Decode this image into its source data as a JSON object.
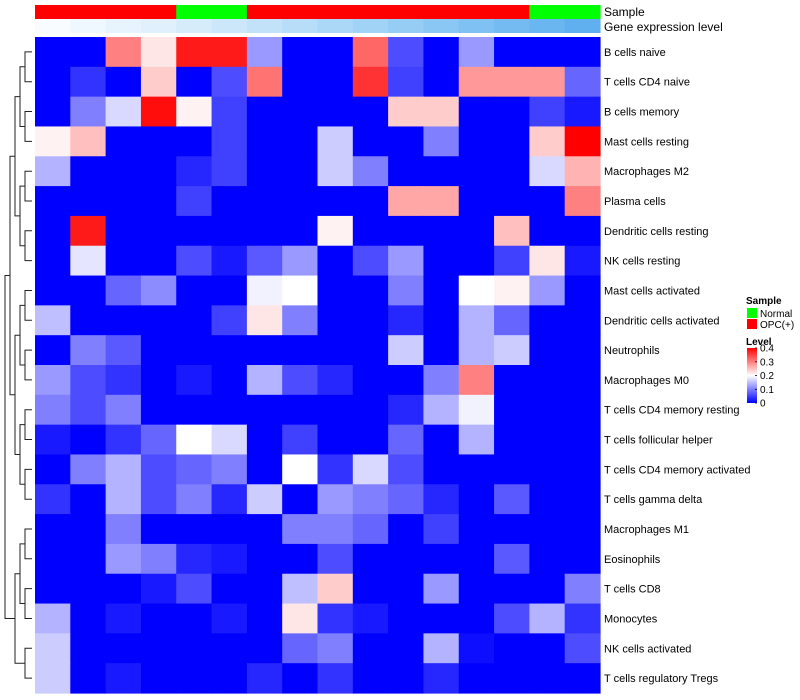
{
  "chart_data": {
    "type": "heatmap",
    "title": "",
    "annotation_tracks": [
      "Sample",
      "Gene expression level"
    ],
    "sample_groups": [
      "OPC(+)",
      "OPC(+)",
      "OPC(+)",
      "OPC(+)",
      "Normal",
      "Normal",
      "OPC(+)",
      "OPC(+)",
      "OPC(+)",
      "OPC(+)",
      "OPC(+)",
      "OPC(+)",
      "OPC(+)",
      "OPC(+)",
      "Normal",
      "Normal"
    ],
    "expression_level_gradient": [
      "#f8fcff",
      "#f0f8ff",
      "#e8f4fd",
      "#e0f0fc",
      "#d6ecfb",
      "#cce7fa",
      "#c2e2f9",
      "#b7ddf8",
      "#acd8f7",
      "#a1d3f6",
      "#96cdf5",
      "#8ac7f4",
      "#7fc1f3",
      "#74bbf2",
      "#6ab6f1",
      "#60b0f0"
    ],
    "rows": [
      "B cells naive",
      "T cells CD4 naive",
      "B cells memory",
      "Mast cells resting",
      "Macrophages M2",
      "Plasma cells",
      "Dendritic cells resting",
      "NK cells resting",
      "Mast cells activated",
      "Dendritic cells activated",
      "Neutrophils",
      "Macrophages M0",
      "T cells CD4 memory resting",
      "T cells follicular helper",
      "T cells CD4 memory activated",
      "T cells gamma delta",
      "Macrophages M1",
      "Eosinophils",
      "T cells CD8",
      "Monocytes",
      "NK cells activated",
      "T cells regulatory  Tregs"
    ],
    "values": [
      [
        0.0,
        0.0,
        0.3,
        0.22,
        0.38,
        0.38,
        0.12,
        0.0,
        0.0,
        0.32,
        0.06,
        0.0,
        0.12,
        0.0,
        0.0,
        0.0
      ],
      [
        0.0,
        0.04,
        0.0,
        0.24,
        0.0,
        0.06,
        0.31,
        0.0,
        0.0,
        0.36,
        0.05,
        0.0,
        0.28,
        0.28,
        0.28,
        0.08
      ],
      [
        0.0,
        0.1,
        0.17,
        0.39,
        0.21,
        0.05,
        0.0,
        0.0,
        0.0,
        0.0,
        0.24,
        0.24,
        0.0,
        0.0,
        0.05,
        0.02
      ],
      [
        0.21,
        0.25,
        0.0,
        0.0,
        0.0,
        0.05,
        0.0,
        0.0,
        0.16,
        0.0,
        0.0,
        0.1,
        0.0,
        0.0,
        0.24,
        0.4
      ],
      [
        0.14,
        0.0,
        0.0,
        0.0,
        0.03,
        0.05,
        0.0,
        0.0,
        0.16,
        0.1,
        0.0,
        0.0,
        0.0,
        0.0,
        0.17,
        0.26
      ],
      [
        0.0,
        0.0,
        0.0,
        0.0,
        0.05,
        0.0,
        0.0,
        0.0,
        0.0,
        0.0,
        0.27,
        0.27,
        0.0,
        0.0,
        0.0,
        0.3
      ],
      [
        0.0,
        0.38,
        0.0,
        0.0,
        0.0,
        0.0,
        0.0,
        0.0,
        0.21,
        0.0,
        0.0,
        0.0,
        0.0,
        0.25,
        0.0,
        0.0
      ],
      [
        0.0,
        0.18,
        0.0,
        0.0,
        0.06,
        0.02,
        0.07,
        0.12,
        0.0,
        0.06,
        0.12,
        0.0,
        0.0,
        0.05,
        0.22,
        0.02
      ],
      [
        0.0,
        0.0,
        0.08,
        0.11,
        0.0,
        0.0,
        0.19,
        0.2,
        0.0,
        0.0,
        0.1,
        0.0,
        0.2,
        0.21,
        0.12,
        0.0
      ],
      [
        0.15,
        0.0,
        0.0,
        0.0,
        0.0,
        0.05,
        0.22,
        0.1,
        0.0,
        0.0,
        0.03,
        0.0,
        0.14,
        0.08,
        0.0,
        0.0
      ],
      [
        0.0,
        0.1,
        0.07,
        0.0,
        0.0,
        0.0,
        0.0,
        0.0,
        0.0,
        0.0,
        0.16,
        0.0,
        0.14,
        0.16,
        0.0,
        0.0
      ],
      [
        0.12,
        0.06,
        0.04,
        0.0,
        0.02,
        0.0,
        0.14,
        0.06,
        0.03,
        0.0,
        0.0,
        0.1,
        0.3,
        0.0,
        0.0,
        0.0
      ],
      [
        0.1,
        0.06,
        0.1,
        0.0,
        0.0,
        0.0,
        0.0,
        0.0,
        0.0,
        0.0,
        0.03,
        0.14,
        0.19,
        0.0,
        0.0,
        0.0
      ],
      [
        0.02,
        0.0,
        0.04,
        0.08,
        0.2,
        0.17,
        0.0,
        0.05,
        0.0,
        0.0,
        0.08,
        0.0,
        0.14,
        0.0,
        0.0,
        0.0
      ],
      [
        0.0,
        0.1,
        0.14,
        0.06,
        0.08,
        0.1,
        0.0,
        0.2,
        0.04,
        0.17,
        0.06,
        0.0,
        0.0,
        0.0,
        0.0,
        0.0
      ],
      [
        0.04,
        0.0,
        0.14,
        0.06,
        0.1,
        0.03,
        0.16,
        0.0,
        0.12,
        0.1,
        0.08,
        0.03,
        0.0,
        0.07,
        0.0,
        0.0
      ],
      [
        0.0,
        0.0,
        0.1,
        0.0,
        0.0,
        0.0,
        0.0,
        0.1,
        0.1,
        0.08,
        0.0,
        0.05,
        0.0,
        0.0,
        0.0,
        0.0
      ],
      [
        0.0,
        0.0,
        0.12,
        0.1,
        0.03,
        0.02,
        0.0,
        0.0,
        0.06,
        0.0,
        0.0,
        0.0,
        0.0,
        0.07,
        0.0,
        0.0
      ],
      [
        0.0,
        0.0,
        0.0,
        0.02,
        0.06,
        0.0,
        0.0,
        0.15,
        0.24,
        0.0,
        0.0,
        0.12,
        0.0,
        0.0,
        0.0,
        0.1
      ],
      [
        0.14,
        0.0,
        0.02,
        0.0,
        0.0,
        0.02,
        0.0,
        0.22,
        0.04,
        0.02,
        0.0,
        0.0,
        0.0,
        0.06,
        0.14,
        0.04
      ],
      [
        0.16,
        0.0,
        0.0,
        0.0,
        0.0,
        0.0,
        0.0,
        0.08,
        0.1,
        0.0,
        0.0,
        0.14,
        0.01,
        0.0,
        0.0,
        0.06
      ],
      [
        0.16,
        0.0,
        0.02,
        0.0,
        0.0,
        0.0,
        0.03,
        0.0,
        0.04,
        0.0,
        0.0,
        0.03,
        0.0,
        0.0,
        0.0,
        0.0
      ]
    ],
    "color_scale": {
      "min": 0,
      "max": 0.4,
      "low": "#0000ff",
      "mid": "#ffffff",
      "high": "#ff0000",
      "midpoint": 0.2
    },
    "legend": {
      "placement": "right",
      "sample_title": "Sample",
      "sample_entries": [
        {
          "label": "Normal",
          "color": "#00ff00"
        },
        {
          "label": "OPC(+)",
          "color": "#ff0000"
        }
      ],
      "level_title": "Level",
      "level_ticks": [
        "0.4",
        "0.3",
        "0.2",
        "0.1",
        "0"
      ],
      "level_tick_values": [
        0.4,
        0.3,
        0.2,
        0.1,
        0
      ]
    },
    "row_dendrogram": true,
    "grid": false
  },
  "colors": {
    "normal": "#00ff00",
    "opc": "#ff0000",
    "low": "#0000ff",
    "high": "#ff0000"
  }
}
